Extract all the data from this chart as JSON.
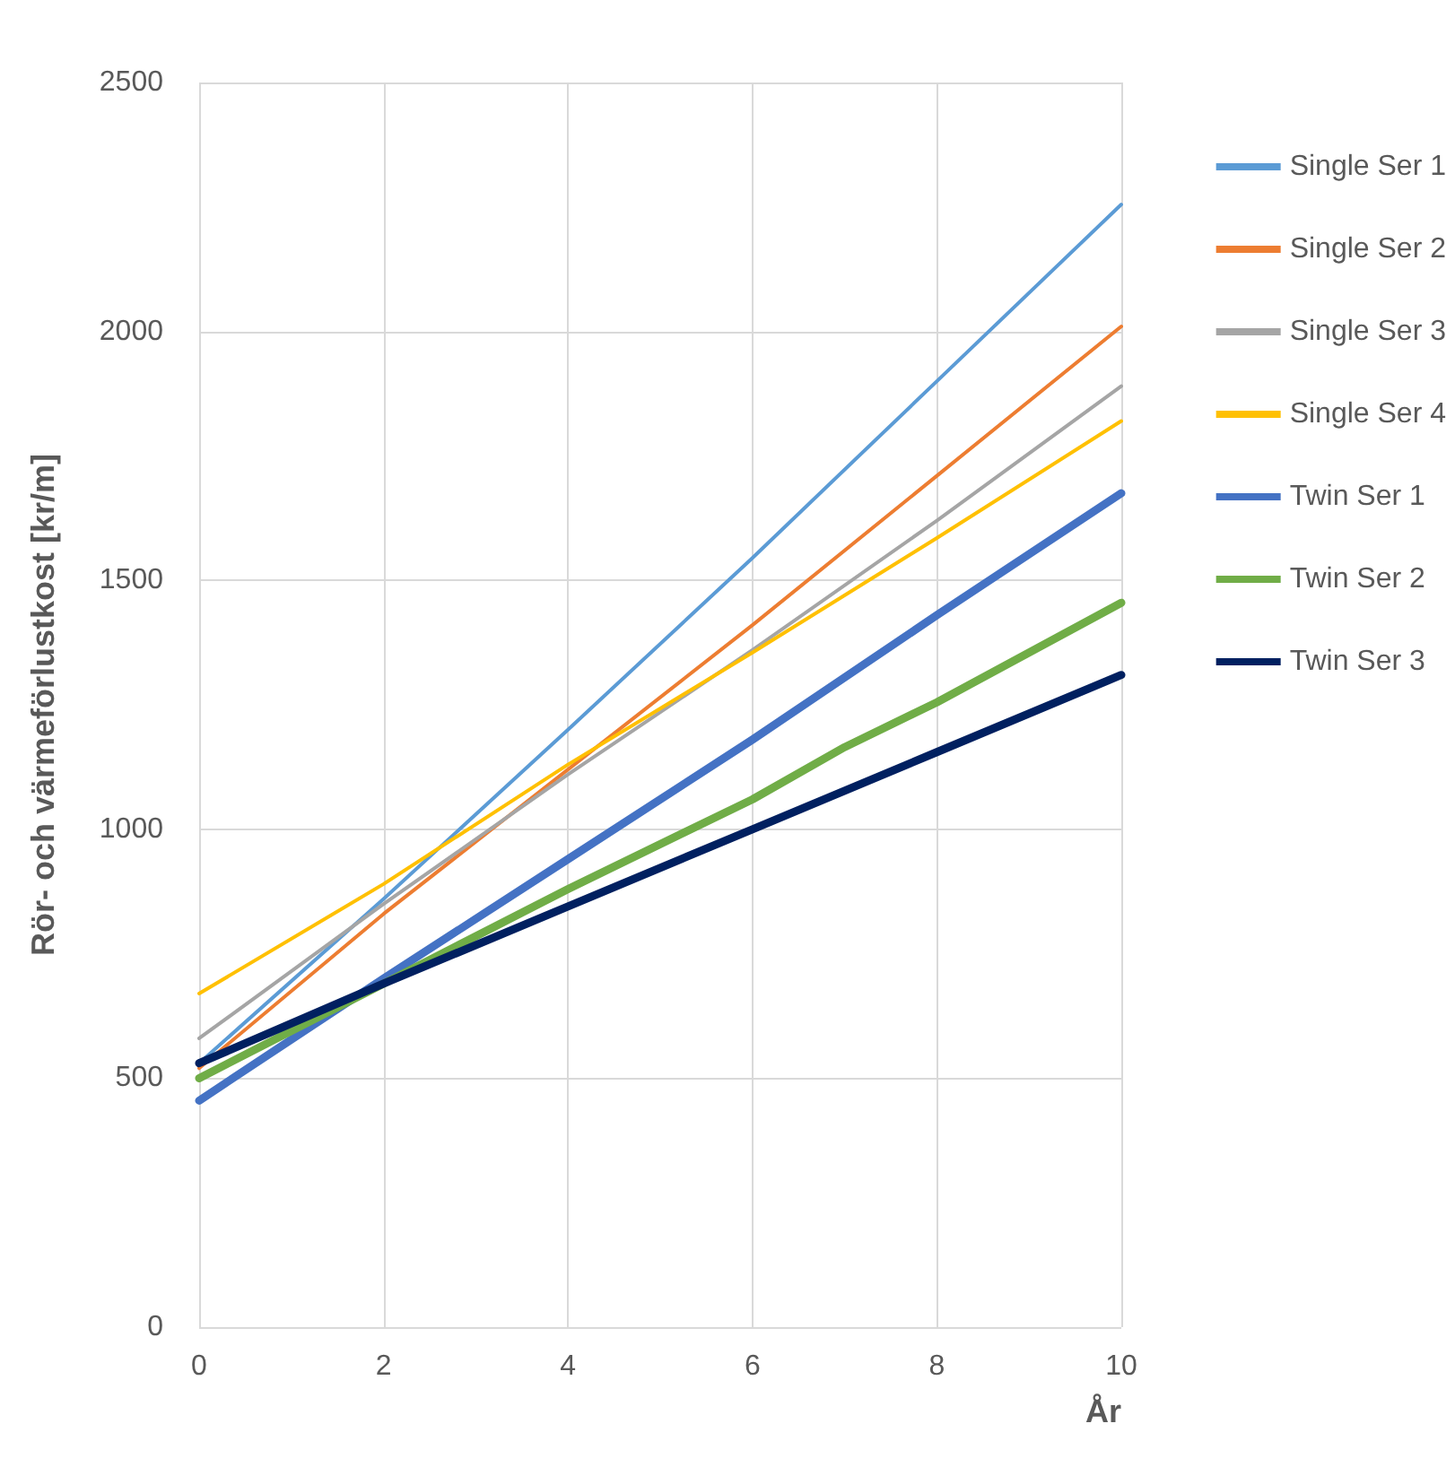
{
  "chart_data": {
    "type": "line",
    "xlabel": "År",
    "ylabel": "Rör- och värmeförlustkost [kr/m]",
    "xlim": [
      0,
      10
    ],
    "xticks": [
      0,
      2,
      4,
      6,
      8,
      10
    ],
    "ylim": [
      0,
      2500
    ],
    "yticks": [
      0,
      500,
      1000,
      1500,
      2000,
      2500
    ],
    "grid": true,
    "legend": "right",
    "marker": "none",
    "line_style": "solid",
    "series": [
      {
        "name": "Single Ser 1",
        "color": "#5b9bd5",
        "x": [
          0,
          2,
          4,
          6,
          8,
          10
        ],
        "values": [
          530,
          860,
          1200,
          1545,
          1900,
          2255
        ]
      },
      {
        "name": "Single Ser 2",
        "color": "#ed7d31",
        "x": [
          0,
          2,
          4,
          6,
          8,
          10
        ],
        "values": [
          520,
          830,
          1120,
          1410,
          1710,
          2010
        ]
      },
      {
        "name": "Single Ser 3",
        "color": "#a5a5a5",
        "x": [
          0,
          2,
          4,
          6,
          8,
          10
        ],
        "values": [
          580,
          850,
          1110,
          1360,
          1620,
          1890
        ]
      },
      {
        "name": "Single Ser 4",
        "color": "#ffc000",
        "x": [
          0,
          2,
          4,
          6,
          8,
          10
        ],
        "values": [
          670,
          890,
          1130,
          1355,
          1585,
          1820
        ]
      },
      {
        "name": "Twin Ser 1",
        "color": "#4472c4",
        "x": [
          0,
          2,
          4,
          6,
          8,
          10
        ],
        "values": [
          455,
          700,
          940,
          1180,
          1430,
          1675
        ]
      },
      {
        "name": "Twin Ser 2",
        "color": "#70ad47",
        "x": [
          0,
          2,
          4,
          6,
          7,
          8,
          10
        ],
        "values": [
          500,
          690,
          880,
          1060,
          1165,
          1255,
          1455
        ]
      },
      {
        "name": "Twin Ser 3",
        "color": "#002060",
        "x": [
          0,
          2,
          4,
          6,
          8,
          10
        ],
        "values": [
          530,
          690,
          845,
          1000,
          1155,
          1310
        ]
      }
    ]
  }
}
